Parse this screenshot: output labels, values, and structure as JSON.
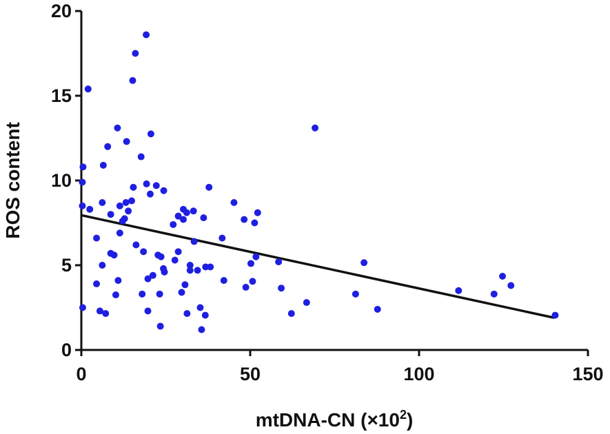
{
  "chart_data": {
    "type": "scatter",
    "title": "",
    "xlabel": "mtDNA-CN (×10",
    "xlabel_sup": "2",
    "xlabel_suffix": ")",
    "ylabel": "ROS content",
    "xlim": [
      0,
      150
    ],
    "ylim": [
      0,
      20
    ],
    "xticks": [
      0,
      50,
      100,
      150
    ],
    "yticks": [
      0,
      5,
      10,
      15,
      20
    ],
    "grid": false,
    "legend": "none",
    "colors": {
      "points": "#1f1fe0",
      "trendline": "#111111",
      "axes": "#111111"
    },
    "trendline": {
      "x": [
        0,
        140
      ],
      "y": [
        7.95,
        1.9
      ]
    },
    "points": [
      [
        0.5,
        10.8
      ],
      [
        0.3,
        9.9
      ],
      [
        0.3,
        8.5
      ],
      [
        0.4,
        2.5
      ],
      [
        2,
        15.4
      ],
      [
        2.5,
        8.3
      ],
      [
        4.5,
        6.6
      ],
      [
        4.5,
        3.9
      ],
      [
        5.5,
        2.3
      ],
      [
        6.2,
        8.7
      ],
      [
        6.2,
        5.0
      ],
      [
        6.5,
        10.9
      ],
      [
        7.2,
        2.15
      ],
      [
        7.8,
        12.0
      ],
      [
        8.7,
        8.0
      ],
      [
        8.7,
        5.7
      ],
      [
        9.7,
        5.6
      ],
      [
        10.2,
        3.25
      ],
      [
        10.7,
        13.1
      ],
      [
        10.9,
        4.1
      ],
      [
        11.4,
        6.9
      ],
      [
        11.4,
        8.5
      ],
      [
        12.2,
        7.6
      ],
      [
        12.8,
        7.75
      ],
      [
        13.2,
        8.7
      ],
      [
        13.4,
        12.3
      ],
      [
        13.9,
        8.2
      ],
      [
        14.9,
        8.8
      ],
      [
        15.2,
        15.9
      ],
      [
        15.4,
        9.6
      ],
      [
        16.0,
        17.5
      ],
      [
        16.2,
        6.2
      ],
      [
        17.7,
        11.4
      ],
      [
        18.0,
        3.3
      ],
      [
        18.4,
        5.8
      ],
      [
        19.2,
        18.6
      ],
      [
        19.3,
        9.8
      ],
      [
        19.7,
        4.2
      ],
      [
        19.7,
        2.3
      ],
      [
        20.4,
        9.2
      ],
      [
        20.6,
        12.75
      ],
      [
        21.2,
        4.4
      ],
      [
        22.2,
        9.7
      ],
      [
        22.7,
        5.6
      ],
      [
        23.2,
        3.3
      ],
      [
        23.4,
        1.4
      ],
      [
        23.6,
        5.5
      ],
      [
        24.3,
        4.8
      ],
      [
        24.4,
        9.4
      ],
      [
        24.6,
        4.6
      ],
      [
        27.2,
        7.4
      ],
      [
        27.7,
        5.3
      ],
      [
        28.7,
        5.8
      ],
      [
        28.7,
        7.9
      ],
      [
        29.7,
        3.4
      ],
      [
        30.2,
        8.3
      ],
      [
        30.2,
        7.7
      ],
      [
        30.7,
        3.85
      ],
      [
        31.2,
        8.1
      ],
      [
        31.3,
        2.15
      ],
      [
        32.2,
        5.0
      ],
      [
        32.2,
        4.7
      ],
      [
        33.2,
        8.2
      ],
      [
        33.4,
        6.4
      ],
      [
        34.4,
        4.7
      ],
      [
        35.2,
        2.5
      ],
      [
        35.6,
        1.2
      ],
      [
        36.2,
        7.8
      ],
      [
        36.7,
        2.05
      ],
      [
        36.8,
        4.9
      ],
      [
        37.8,
        9.6
      ],
      [
        38.2,
        4.9
      ],
      [
        41.7,
        6.6
      ],
      [
        42.2,
        4.1
      ],
      [
        45.2,
        8.7
      ],
      [
        48.2,
        7.7
      ],
      [
        48.7,
        3.7
      ],
      [
        50.2,
        5.1
      ],
      [
        50.7,
        4.05
      ],
      [
        51.3,
        7.5
      ],
      [
        51.7,
        5.5
      ],
      [
        52.2,
        8.1
      ],
      [
        58.4,
        5.2
      ],
      [
        59.2,
        3.65
      ],
      [
        62.2,
        2.15
      ],
      [
        66.7,
        2.8
      ],
      [
        69.2,
        13.1
      ],
      [
        81.2,
        3.3
      ],
      [
        83.7,
        5.15
      ],
      [
        87.7,
        2.4
      ],
      [
        111.7,
        3.5
      ],
      [
        122.2,
        3.3
      ],
      [
        124.7,
        4.35
      ],
      [
        127.2,
        3.8
      ],
      [
        140.3,
        2.05
      ]
    ]
  }
}
